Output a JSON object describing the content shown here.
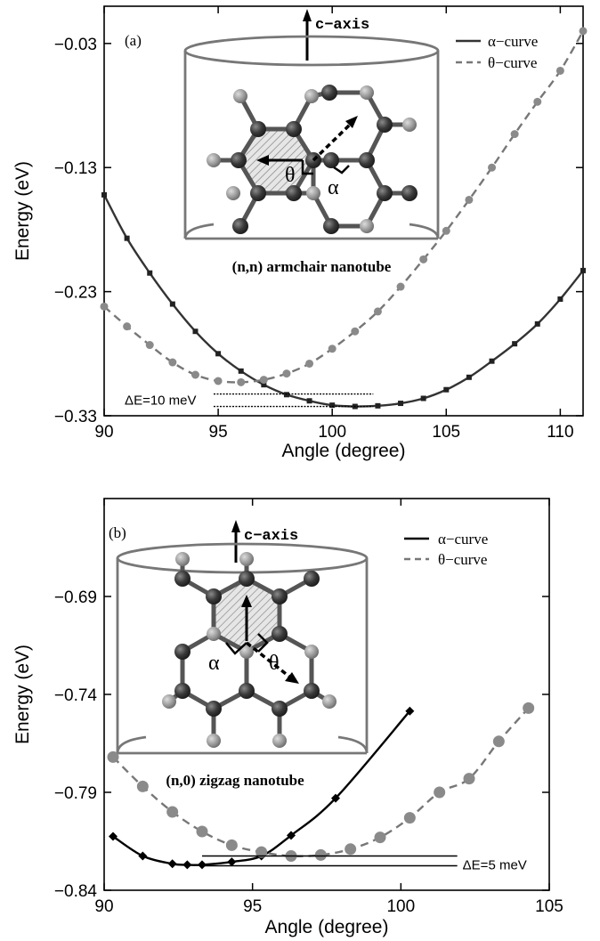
{
  "chart_data": [
    {
      "type": "line",
      "panel_label": "(a)",
      "xlabel": "Angle (degree)",
      "ylabel": "Energy (eV)",
      "xlim": [
        90,
        111
      ],
      "ylim": [
        -0.33,
        0.0
      ],
      "xticks": [
        90,
        95,
        100,
        105,
        110
      ],
      "xtick_labels": [
        "90",
        "95",
        "100",
        "105",
        "110"
      ],
      "yticks": [
        -0.33,
        -0.23,
        -0.13,
        -0.03
      ],
      "ytick_labels": [
        "−0.33",
        "−0.23",
        "−0.13",
        "−0.03"
      ],
      "legend_position": "top-right",
      "series": [
        {
          "name": "α−curve",
          "color": "#333333",
          "line_style": "solid",
          "marker": "square",
          "x": [
            90,
            91,
            92,
            93,
            94,
            95,
            96,
            97,
            98,
            99,
            100,
            101,
            102,
            103,
            104,
            105,
            106,
            107,
            108,
            109,
            110,
            111
          ],
          "y": [
            -0.152,
            -0.187,
            -0.215,
            -0.24,
            -0.262,
            -0.28,
            -0.294,
            -0.305,
            -0.313,
            -0.318,
            -0.3215,
            -0.3225,
            -0.322,
            -0.32,
            -0.316,
            -0.309,
            -0.299,
            -0.286,
            -0.272,
            -0.256,
            -0.236,
            -0.213
          ]
        },
        {
          "name": "θ−curve",
          "color": "#777777",
          "line_style": "dashed",
          "marker": "circle",
          "x": [
            90,
            91,
            92,
            93,
            94,
            95,
            96,
            97,
            98,
            99,
            100,
            101,
            102,
            103,
            104,
            105,
            106,
            107,
            108,
            109,
            110,
            111
          ],
          "y": [
            -0.242,
            -0.258,
            -0.273,
            -0.287,
            -0.297,
            -0.302,
            -0.303,
            -0.301,
            -0.296,
            -0.288,
            -0.276,
            -0.262,
            -0.246,
            -0.226,
            -0.204,
            -0.181,
            -0.156,
            -0.13,
            -0.103,
            -0.077,
            -0.052,
            -0.02
          ]
        }
      ],
      "annotations": [
        {
          "text": "ΔE=10 meV",
          "x_range": [
            94.8,
            101.8
          ],
          "y_levels": [
            -0.3125,
            -0.3225
          ]
        }
      ],
      "inset": {
        "axis_label": "c−axis",
        "caption": "(n,n) armchair nanotube",
        "angle_labels": [
          "θ",
          "α"
        ]
      }
    },
    {
      "type": "line",
      "panel_label": "(b)",
      "xlabel": "Angle (degree)",
      "ylabel": "Energy (eV)",
      "xlim": [
        90,
        105
      ],
      "ylim": [
        -0.84,
        -0.64
      ],
      "xticks": [
        90,
        95,
        100,
        105
      ],
      "xtick_labels": [
        "90",
        "95",
        "100",
        "105"
      ],
      "yticks": [
        -0.84,
        -0.79,
        -0.74,
        -0.69
      ],
      "ytick_labels": [
        "−0.84",
        "−0.79",
        "−0.74",
        "−0.69"
      ],
      "legend_position": "top-right",
      "series": [
        {
          "name": "α−curve",
          "color": "#000000",
          "line_style": "solid",
          "marker": "diamond",
          "x": [
            90.3,
            91.3,
            92.3,
            92.8,
            93.3,
            94.3,
            95.3,
            96.3,
            97.8,
            100.3
          ],
          "y": [
            -0.8125,
            -0.8225,
            -0.8265,
            -0.827,
            -0.827,
            -0.8255,
            -0.8225,
            -0.812,
            -0.793,
            -0.7485
          ]
        },
        {
          "name": "θ−curve",
          "color": "#777777",
          "line_style": "dashed",
          "marker": "circle",
          "x": [
            90.3,
            91.3,
            92.3,
            93.3,
            94.3,
            95.3,
            96.3,
            97.3,
            98.3,
            99.3,
            100.3,
            101.3,
            102.3,
            103.3,
            104.3
          ],
          "y": [
            -0.772,
            -0.787,
            -0.8,
            -0.81,
            -0.817,
            -0.8205,
            -0.8225,
            -0.822,
            -0.819,
            -0.813,
            -0.803,
            -0.79,
            -0.783,
            -0.764,
            -0.747
          ]
        }
      ],
      "annotations": [
        {
          "text": "ΔE=5 meV",
          "x_range": [
            93.3,
            101.9
          ],
          "y_levels": [
            -0.8225,
            -0.8275
          ]
        }
      ],
      "inset": {
        "axis_label": "c−axis",
        "caption": "(n,0) zigzag nanotube",
        "angle_labels": [
          "α",
          "θ"
        ]
      }
    }
  ]
}
